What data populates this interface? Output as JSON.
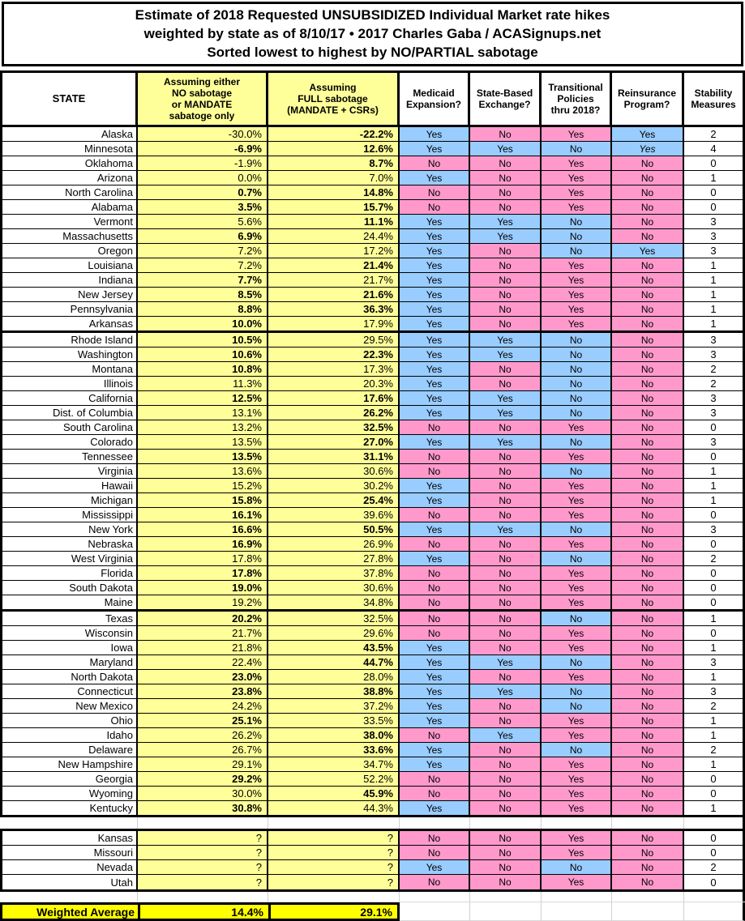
{
  "title": {
    "line1": "Estimate of 2018 Requested UNSUBSIDIZED Individual Market rate hikes",
    "line2": "weighted by state as of 8/10/17  •  2017 Charles Gaba / ACASignups.net",
    "line3": "Sorted lowest to highest by NO/PARTIAL sabotage"
  },
  "colors": {
    "yellow": "#FFFF99",
    "gold": "#FFFF00",
    "blue": "#99CCFF",
    "pink": "#FF99CC"
  },
  "color_rules": {
    "med": {
      "Yes": "blue",
      "No": "pink"
    },
    "exch": {
      "Yes": "blue",
      "No": "pink"
    },
    "trans": {
      "Yes": "pink",
      "No": "blue"
    },
    "reins": {
      "Yes": "blue",
      "No": "pink"
    }
  },
  "chart_data": {
    "type": "table",
    "columns": {
      "state": "STATE",
      "no_sabotage": "Assuming either\nNO sabotage\nor MANDATE\nsabatoge only",
      "full_sabotage": "Assuming\nFULL sabotage\n(MANDATE + CSRs)",
      "medicaid": "Medicaid\nExpansion?",
      "exchange": "State-Based\nExchange?",
      "transitional": "Transitional\nPolicies\nthru 2018?",
      "reinsurance": "Reinsurance\nProgram?",
      "stability": "Stability\nMeasures"
    },
    "rows": [
      {
        "state": "Alaska",
        "no": "-30.0%",
        "no_b": false,
        "full": "-22.2%",
        "full_b": true,
        "med": "Yes",
        "exch": "No",
        "trans": "Yes",
        "reins": "Yes",
        "stab": "2"
      },
      {
        "state": "Minnesota",
        "no": "-6.9%",
        "no_b": true,
        "full": "12.6%",
        "full_b": true,
        "med": "Yes",
        "exch": "Yes",
        "trans": "No",
        "reins": "Yes",
        "reins_italic": true,
        "stab": "4"
      },
      {
        "state": "Oklahoma",
        "no": "-1.9%",
        "no_b": false,
        "full": "8.7%",
        "full_b": true,
        "med": "No",
        "exch": "No",
        "trans": "Yes",
        "reins": "No",
        "stab": "0"
      },
      {
        "state": "Arizona",
        "no": "0.0%",
        "no_b": false,
        "full": "7.0%",
        "full_b": false,
        "med": "Yes",
        "exch": "No",
        "trans": "Yes",
        "reins": "No",
        "stab": "1"
      },
      {
        "state": "North Carolina",
        "no": "0.7%",
        "no_b": true,
        "full": "14.8%",
        "full_b": true,
        "med": "No",
        "exch": "No",
        "trans": "Yes",
        "reins": "No",
        "stab": "0"
      },
      {
        "state": "Alabama",
        "no": "3.5%",
        "no_b": true,
        "full": "15.7%",
        "full_b": true,
        "med": "No",
        "exch": "No",
        "trans": "Yes",
        "reins": "No",
        "stab": "0"
      },
      {
        "state": "Vermont",
        "no": "5.6%",
        "no_b": false,
        "full": "11.1%",
        "full_b": true,
        "med": "Yes",
        "exch": "Yes",
        "trans": "No",
        "reins": "No",
        "stab": "3"
      },
      {
        "state": "Massachusetts",
        "no": "6.9%",
        "no_b": true,
        "full": "24.4%",
        "full_b": false,
        "med": "Yes",
        "exch": "Yes",
        "trans": "No",
        "reins": "No",
        "stab": "3"
      },
      {
        "state": "Oregon",
        "no": "7.2%",
        "no_b": false,
        "full": "17.2%",
        "full_b": false,
        "med": "Yes",
        "exch": "No",
        "trans": "No",
        "reins": "Yes",
        "stab": "3"
      },
      {
        "state": "Louisiana",
        "no": "7.2%",
        "no_b": false,
        "full": "21.4%",
        "full_b": true,
        "med": "Yes",
        "exch": "No",
        "trans": "Yes",
        "reins": "No",
        "stab": "1"
      },
      {
        "state": "Indiana",
        "no": "7.7%",
        "no_b": true,
        "full": "21.7%",
        "full_b": false,
        "med": "Yes",
        "exch": "No",
        "trans": "Yes",
        "reins": "No",
        "stab": "1"
      },
      {
        "state": "New Jersey",
        "no": "8.5%",
        "no_b": true,
        "full": "21.6%",
        "full_b": true,
        "med": "Yes",
        "exch": "No",
        "trans": "Yes",
        "reins": "No",
        "stab": "1"
      },
      {
        "state": "Pennsylvania",
        "no": "8.8%",
        "no_b": true,
        "full": "36.3%",
        "full_b": true,
        "med": "Yes",
        "exch": "No",
        "trans": "Yes",
        "reins": "No",
        "stab": "1"
      },
      {
        "state": "Arkansas",
        "no": "10.0%",
        "no_b": true,
        "full": "17.9%",
        "full_b": false,
        "med": "Yes",
        "exch": "No",
        "trans": "Yes",
        "reins": "No",
        "stab": "1",
        "group_end": true
      },
      {
        "state": "Rhode Island",
        "no": "10.5%",
        "no_b": true,
        "full": "29.5%",
        "full_b": false,
        "med": "Yes",
        "exch": "Yes",
        "trans": "No",
        "reins": "No",
        "stab": "3"
      },
      {
        "state": "Washington",
        "no": "10.6%",
        "no_b": true,
        "full": "22.3%",
        "full_b": true,
        "med": "Yes",
        "exch": "Yes",
        "trans": "No",
        "reins": "No",
        "stab": "3"
      },
      {
        "state": "Montana",
        "no": "10.8%",
        "no_b": true,
        "full": "17.3%",
        "full_b": false,
        "med": "Yes",
        "exch": "No",
        "trans": "No",
        "reins": "No",
        "stab": "2"
      },
      {
        "state": "Illinois",
        "no": "11.3%",
        "no_b": false,
        "full": "20.3%",
        "full_b": false,
        "med": "Yes",
        "exch": "No",
        "trans": "No",
        "reins": "No",
        "stab": "2"
      },
      {
        "state": "California",
        "no": "12.5%",
        "no_b": true,
        "full": "17.6%",
        "full_b": true,
        "med": "Yes",
        "exch": "Yes",
        "trans": "No",
        "reins": "No",
        "stab": "3"
      },
      {
        "state": "Dist. of Columbia",
        "no": "13.1%",
        "no_b": false,
        "full": "26.2%",
        "full_b": true,
        "med": "Yes",
        "exch": "Yes",
        "trans": "No",
        "reins": "No",
        "stab": "3"
      },
      {
        "state": "South Carolina",
        "no": "13.2%",
        "no_b": false,
        "full": "32.5%",
        "full_b": true,
        "med": "No",
        "exch": "No",
        "trans": "Yes",
        "reins": "No",
        "stab": "0"
      },
      {
        "state": "Colorado",
        "no": "13.5%",
        "no_b": false,
        "full": "27.0%",
        "full_b": true,
        "med": "Yes",
        "exch": "Yes",
        "trans": "No",
        "reins": "No",
        "stab": "3"
      },
      {
        "state": "Tennessee",
        "no": "13.5%",
        "no_b": true,
        "full": "31.1%",
        "full_b": true,
        "med": "No",
        "exch": "No",
        "trans": "Yes",
        "reins": "No",
        "stab": "0"
      },
      {
        "state": "Virginia",
        "no": "13.6%",
        "no_b": false,
        "full": "30.6%",
        "full_b": false,
        "med": "No",
        "exch": "No",
        "trans": "No",
        "reins": "No",
        "stab": "1"
      },
      {
        "state": "Hawaii",
        "no": "15.2%",
        "no_b": false,
        "full": "30.2%",
        "full_b": false,
        "med": "Yes",
        "exch": "No",
        "trans": "Yes",
        "reins": "No",
        "stab": "1"
      },
      {
        "state": "Michigan",
        "no": "15.8%",
        "no_b": true,
        "full": "25.4%",
        "full_b": true,
        "med": "Yes",
        "exch": "No",
        "trans": "Yes",
        "reins": "No",
        "stab": "1"
      },
      {
        "state": "Mississippi",
        "no": "16.1%",
        "no_b": true,
        "full": "39.6%",
        "full_b": false,
        "med": "No",
        "exch": "No",
        "trans": "Yes",
        "reins": "No",
        "stab": "0"
      },
      {
        "state": "New York",
        "no": "16.6%",
        "no_b": true,
        "full": "50.5%",
        "full_b": true,
        "med": "Yes",
        "exch": "Yes",
        "trans": "No",
        "reins": "No",
        "stab": "3"
      },
      {
        "state": "Nebraska",
        "no": "16.9%",
        "no_b": true,
        "full": "26.9%",
        "full_b": false,
        "med": "No",
        "exch": "No",
        "trans": "Yes",
        "reins": "No",
        "stab": "0"
      },
      {
        "state": "West Virginia",
        "no": "17.8%",
        "no_b": false,
        "full": "27.8%",
        "full_b": false,
        "med": "Yes",
        "exch": "No",
        "trans": "No",
        "reins": "No",
        "stab": "2"
      },
      {
        "state": "Florida",
        "no": "17.8%",
        "no_b": true,
        "full": "37.8%",
        "full_b": false,
        "med": "No",
        "exch": "No",
        "trans": "Yes",
        "reins": "No",
        "stab": "0"
      },
      {
        "state": "South Dakota",
        "no": "19.0%",
        "no_b": true,
        "full": "30.6%",
        "full_b": false,
        "med": "No",
        "exch": "No",
        "trans": "Yes",
        "reins": "No",
        "stab": "0"
      },
      {
        "state": "Maine",
        "no": "19.2%",
        "no_b": false,
        "full": "34.8%",
        "full_b": false,
        "med": "No",
        "exch": "No",
        "trans": "Yes",
        "reins": "No",
        "stab": "0",
        "group_end": true
      },
      {
        "state": "Texas",
        "no": "20.2%",
        "no_b": true,
        "full": "32.5%",
        "full_b": false,
        "med": "No",
        "exch": "No",
        "trans": "No",
        "reins": "No",
        "stab": "1"
      },
      {
        "state": "Wisconsin",
        "no": "21.7%",
        "no_b": false,
        "full": "29.6%",
        "full_b": false,
        "med": "No",
        "exch": "No",
        "trans": "Yes",
        "reins": "No",
        "stab": "0"
      },
      {
        "state": "Iowa",
        "no": "21.8%",
        "no_b": false,
        "full": "43.5%",
        "full_b": true,
        "med": "Yes",
        "exch": "No",
        "trans": "Yes",
        "reins": "No",
        "stab": "1"
      },
      {
        "state": "Maryland",
        "no": "22.4%",
        "no_b": false,
        "full": "44.7%",
        "full_b": true,
        "med": "Yes",
        "exch": "Yes",
        "trans": "No",
        "reins": "No",
        "stab": "3"
      },
      {
        "state": "North Dakota",
        "no": "23.0%",
        "no_b": true,
        "full": "28.0%",
        "full_b": false,
        "med": "Yes",
        "exch": "No",
        "trans": "Yes",
        "reins": "No",
        "stab": "1"
      },
      {
        "state": "Connecticut",
        "no": "23.8%",
        "no_b": true,
        "full": "38.8%",
        "full_b": true,
        "med": "Yes",
        "exch": "Yes",
        "trans": "No",
        "reins": "No",
        "stab": "3"
      },
      {
        "state": "New Mexico",
        "no": "24.2%",
        "no_b": false,
        "full": "37.2%",
        "full_b": false,
        "med": "Yes",
        "exch": "No",
        "trans": "No",
        "reins": "No",
        "stab": "2"
      },
      {
        "state": "Ohio",
        "no": "25.1%",
        "no_b": true,
        "full": "33.5%",
        "full_b": false,
        "med": "Yes",
        "exch": "No",
        "trans": "Yes",
        "reins": "No",
        "stab": "1"
      },
      {
        "state": "Idaho",
        "no": "26.2%",
        "no_b": false,
        "full": "38.0%",
        "full_b": true,
        "med": "No",
        "exch": "Yes",
        "trans": "Yes",
        "reins": "No",
        "stab": "1"
      },
      {
        "state": "Delaware",
        "no": "26.7%",
        "no_b": false,
        "full": "33.6%",
        "full_b": true,
        "med": "Yes",
        "exch": "No",
        "trans": "No",
        "reins": "No",
        "stab": "2"
      },
      {
        "state": "New Hampshire",
        "no": "29.1%",
        "no_b": false,
        "full": "34.7%",
        "full_b": false,
        "med": "Yes",
        "exch": "No",
        "trans": "Yes",
        "reins": "No",
        "stab": "1"
      },
      {
        "state": "Georgia",
        "no": "29.2%",
        "no_b": true,
        "full": "52.2%",
        "full_b": false,
        "med": "No",
        "exch": "No",
        "trans": "Yes",
        "reins": "No",
        "stab": "0"
      },
      {
        "state": "Wyoming",
        "no": "30.0%",
        "no_b": false,
        "full": "45.9%",
        "full_b": true,
        "med": "No",
        "exch": "No",
        "trans": "Yes",
        "reins": "No",
        "stab": "0"
      },
      {
        "state": "Kentucky",
        "no": "30.8%",
        "no_b": true,
        "full": "44.3%",
        "full_b": false,
        "med": "Yes",
        "exch": "No",
        "trans": "Yes",
        "reins": "No",
        "stab": "1",
        "group_end": true
      }
    ],
    "pending_rows": [
      {
        "state": "Kansas",
        "no": "?",
        "no_b": false,
        "full": "?",
        "full_b": false,
        "med": "No",
        "exch": "No",
        "trans": "Yes",
        "reins": "No",
        "stab": "0"
      },
      {
        "state": "Missouri",
        "no": "?",
        "no_b": false,
        "full": "?",
        "full_b": false,
        "med": "No",
        "exch": "No",
        "trans": "Yes",
        "reins": "No",
        "stab": "0"
      },
      {
        "state": "Nevada",
        "no": "?",
        "no_b": false,
        "full": "?",
        "full_b": false,
        "med": "Yes",
        "exch": "No",
        "trans": "No",
        "reins": "No",
        "stab": "2"
      },
      {
        "state": "Utah",
        "no": "?",
        "no_b": false,
        "full": "?",
        "full_b": false,
        "med": "No",
        "exch": "No",
        "trans": "Yes",
        "reins": "No",
        "stab": "0"
      }
    ],
    "weighted_average": {
      "label": "Weighted Average",
      "no_sabotage": "14.4%",
      "full_sabotage": "29.1%"
    }
  }
}
